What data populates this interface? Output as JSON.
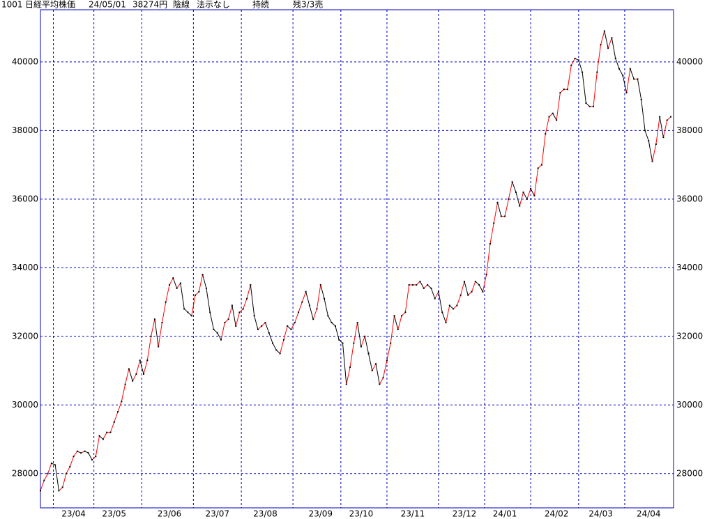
{
  "chart_data": {
    "type": "line",
    "header": [
      "1001",
      "日経平均株価",
      "24/05/01",
      "38274円",
      "陰線",
      "法示なし",
      "持続",
      "残3/3売"
    ],
    "categories": [
      null,
      null,
      null,
      null,
      null,
      null,
      null,
      null,
      null,
      "23/04",
      null,
      null,
      null,
      null,
      null,
      null,
      null,
      null,
      null,
      null,
      "23/05",
      null,
      null,
      null,
      null,
      null,
      null,
      null,
      null,
      null,
      null,
      null,
      null,
      null,
      null,
      "23/06",
      null,
      null,
      null,
      null,
      null,
      null,
      null,
      null,
      null,
      null,
      null,
      null,
      "23/07",
      null,
      null,
      null,
      null,
      null,
      null,
      null,
      null,
      null,
      null,
      null,
      null,
      "23/08",
      null,
      null,
      null,
      null,
      null,
      null,
      null,
      null,
      null,
      null,
      null,
      null,
      null,
      null,
      "23/09",
      null,
      null,
      null,
      null,
      null,
      null,
      null,
      null,
      null,
      null,
      "23/10",
      null,
      null,
      null,
      null,
      null,
      null,
      null,
      null,
      null,
      null,
      null,
      null,
      null,
      "23/11",
      null,
      null,
      null,
      null,
      null,
      null,
      null,
      null,
      null,
      null,
      null,
      null,
      null,
      "23/12",
      null,
      null,
      null,
      null,
      null,
      null,
      null,
      null,
      null,
      null,
      "24/01",
      null,
      null,
      null,
      null,
      null,
      null,
      null,
      null,
      null,
      null,
      null,
      null,
      null,
      "24/02",
      null,
      null,
      null,
      null,
      null,
      null,
      null,
      null,
      null,
      null,
      null,
      "24/03",
      null,
      null,
      null,
      null,
      null,
      null,
      null,
      null,
      null,
      null,
      null,
      null,
      "24/04",
      null,
      null,
      null,
      null,
      null,
      null
    ],
    "values": [
      27500,
      27800,
      28000,
      28300,
      28250,
      27500,
      27600,
      28000,
      28200,
      28500,
      28650,
      28600,
      28650,
      28600,
      28400,
      28500,
      29100,
      29000,
      29200,
      29200,
      29500,
      29800,
      30100,
      30600,
      31050,
      30700,
      30900,
      31300,
      30900,
      31300,
      32000,
      32500,
      31700,
      32400,
      33000,
      33500,
      33700,
      33400,
      33550,
      32800,
      32700,
      32600,
      33200,
      33300,
      33800,
      33400,
      32700,
      32200,
      32100,
      31900,
      32400,
      32500,
      32900,
      32300,
      32700,
      32800,
      33100,
      33500,
      32600,
      32200,
      32300,
      32400,
      32100,
      31800,
      31600,
      31500,
      31900,
      32300,
      32200,
      32400,
      32700,
      33000,
      33300,
      32900,
      32500,
      32800,
      33500,
      33100,
      32600,
      32400,
      32300,
      31900,
      31800,
      30600,
      31100,
      31800,
      32400,
      31700,
      32000,
      31500,
      31000,
      31200,
      30600,
      30800,
      31300,
      31800,
      32600,
      32200,
      32600,
      32700,
      33500,
      33500,
      33500,
      33600,
      33400,
      33500,
      33400,
      33100,
      33300,
      32700,
      32400,
      32900,
      32800,
      32900,
      33200,
      33600,
      33200,
      33300,
      33600,
      33500,
      33300,
      33800,
      34700,
      35300,
      35900,
      35500,
      35500,
      36000,
      36500,
      36200,
      35800,
      36200,
      36000,
      36300,
      36100,
      36900,
      37000,
      37900,
      38400,
      38500,
      38300,
      39100,
      39200,
      39200,
      39900,
      40100,
      40050,
      39700,
      38800,
      38700,
      38700,
      39700,
      40500,
      40900,
      40400,
      40700,
      40100,
      39800,
      39600,
      39100,
      39800,
      39500,
      39500,
      38900,
      38000,
      37700,
      37100,
      37600,
      38400,
      37800,
      38300,
      38400
    ],
    "up_color": "#ff0000",
    "down_color": "#000000",
    "grid_color": "#0000c0",
    "ylim": [
      27000,
      41520
    ],
    "yticks": [
      28000,
      30000,
      32000,
      34000,
      36000,
      38000,
      40000
    ],
    "grid": true
  }
}
